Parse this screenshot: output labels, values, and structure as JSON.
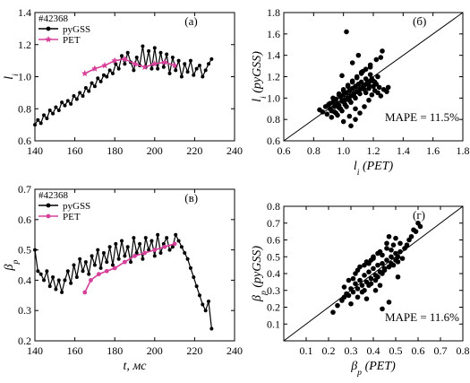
{
  "chart_data": [
    {
      "type": "line",
      "panel_label": "(а)",
      "shot": "#42368",
      "xlabel": "",
      "ylabel": "l_i",
      "xlim": [
        140,
        240
      ],
      "ylim": [
        0.6,
        1.4
      ],
      "xticks": [
        "140",
        "160",
        "180",
        "200",
        "220",
        "240"
      ],
      "yticks": [
        "0.6",
        "0.8",
        "1.0",
        "1.2",
        "1.4"
      ],
      "legend_position": "top-left",
      "colors": {
        "pyGSS": "#000000",
        "PET": "#d6409a"
      },
      "series": [
        {
          "name": "pyGSS",
          "marker": "circle",
          "x": [
            140,
            141.5,
            143,
            144.5,
            146,
            147.5,
            149,
            150.5,
            152,
            153.5,
            155,
            156.5,
            158,
            159.5,
            161,
            162.5,
            164,
            165.5,
            167,
            168.5,
            170,
            171.5,
            173,
            174.5,
            176,
            177.5,
            179,
            180.5,
            182,
            183.5,
            185,
            186.5,
            188,
            189.5,
            191,
            192.5,
            194,
            195.5,
            197,
            198.5,
            200,
            201.5,
            203,
            204.5,
            206,
            207.5,
            209,
            210.5,
            212,
            213.5,
            215,
            216.5,
            218,
            219.5,
            221,
            222.5,
            224,
            225.5,
            227,
            228.5
          ],
          "y": [
            0.7,
            0.73,
            0.71,
            0.76,
            0.74,
            0.79,
            0.77,
            0.81,
            0.79,
            0.84,
            0.82,
            0.85,
            0.83,
            0.88,
            0.86,
            0.9,
            0.88,
            0.93,
            0.91,
            0.96,
            0.94,
            0.99,
            0.97,
            1.01,
            1.0,
            1.04,
            1.02,
            1.08,
            1.05,
            1.13,
            1.08,
            1.15,
            1.09,
            1.04,
            1.12,
            1.07,
            1.19,
            1.06,
            1.16,
            1.05,
            1.18,
            1.05,
            1.15,
            1.06,
            1.14,
            1.02,
            1.12,
            1.04,
            1.1,
            1.0,
            1.08,
            1.03,
            1.1,
            1.01,
            1.05,
            1.07,
            1.0,
            1.04,
            1.08,
            1.11
          ]
        },
        {
          "name": "PET",
          "marker": "star",
          "x": [
            165,
            170,
            175,
            180,
            185,
            190,
            195,
            200,
            205,
            210
          ],
          "y": [
            1.02,
            1.05,
            1.07,
            1.1,
            1.11,
            1.08,
            1.06,
            1.08,
            1.09,
            1.07
          ]
        }
      ]
    },
    {
      "type": "scatter",
      "panel_label": "(б)",
      "xlabel": "l_i (PET)",
      "ylabel": "l_i (pyGSS)",
      "xlim": [
        0.6,
        1.8
      ],
      "ylim": [
        0.6,
        1.8
      ],
      "xticks": [
        "0.6",
        "0.8",
        "1.0",
        "1.2",
        "1.4",
        "1.6",
        "1.8"
      ],
      "yticks": [
        "0.6",
        "0.8",
        "1.0",
        "1.2",
        "1.4",
        "1.6",
        "1.8"
      ],
      "identity_line": true,
      "annotation": "MAPE = 11.5%",
      "colors": {
        "points": "#000000"
      },
      "x": [
        0.84,
        0.86,
        0.88,
        0.89,
        0.9,
        0.91,
        0.92,
        0.93,
        0.94,
        0.95,
        0.96,
        0.97,
        0.98,
        0.99,
        1.0,
        1.01,
        1.02,
        1.03,
        1.04,
        1.05,
        1.06,
        1.07,
        1.08,
        1.09,
        1.1,
        1.11,
        1.12,
        1.13,
        1.14,
        1.15,
        1.16,
        1.17,
        1.18,
        1.19,
        1.2,
        1.21,
        1.22,
        1.23,
        1.24,
        1.25,
        1.27,
        1.29,
        0.92,
        0.95,
        0.98,
        1.01,
        1.04,
        1.07,
        1.1,
        1.13,
        1.16,
        1.19,
        0.93,
        0.97,
        1.0,
        1.03,
        1.06,
        1.09,
        1.12,
        1.15,
        1.18,
        1.21,
        0.96,
        0.99,
        1.02,
        1.05,
        1.08,
        1.11,
        1.14,
        1.17,
        1.2,
        1.23,
        0.91,
        0.94,
        0.97,
        1.0,
        1.03,
        1.06,
        1.09,
        1.12,
        1.15,
        1.18,
        1.05,
        1.08,
        1.11,
        1.14,
        1.17,
        1.22,
        1.26,
        1.3,
        1.25,
        1.18,
        1.02,
        0.99,
        1.06,
        1.1,
        1.13,
        1.08,
        1.04,
        1.0,
        0.97,
        0.94
      ],
      "y": [
        0.89,
        0.87,
        0.92,
        0.85,
        0.94,
        0.9,
        0.88,
        0.96,
        0.92,
        0.99,
        0.95,
        0.93,
        1.01,
        0.97,
        1.03,
        0.98,
        1.05,
        1.0,
        1.07,
        1.02,
        1.09,
        1.04,
        1.11,
        1.06,
        1.13,
        1.08,
        1.15,
        1.1,
        1.12,
        1.05,
        1.14,
        1.09,
        1.16,
        1.03,
        1.11,
        1.07,
        1.13,
        1.05,
        1.1,
        1.02,
        1.08,
        1.06,
        0.82,
        0.86,
        0.9,
        0.94,
        0.98,
        1.02,
        1.06,
        1.1,
        1.14,
        1.18,
        1.0,
        1.04,
        1.08,
        1.12,
        1.16,
        1.2,
        1.24,
        1.18,
        1.22,
        1.15,
        0.84,
        0.88,
        0.92,
        0.96,
        1.0,
        1.04,
        1.08,
        1.12,
        1.16,
        1.2,
        0.95,
        0.99,
        1.03,
        1.07,
        1.11,
        1.15,
        1.19,
        1.23,
        1.27,
        1.31,
        0.74,
        0.8,
        0.86,
        0.92,
        0.98,
        1.36,
        1.44,
        1.1,
        1.38,
        1.29,
        1.62,
        1.21,
        1.33,
        1.4,
        1.25,
        0.9,
        0.83,
        0.78,
        0.91,
        0.87
      ]
    },
    {
      "type": "line",
      "panel_label": "(в)",
      "shot": "#42368",
      "xlabel": "t, мс",
      "ylabel": "β_p",
      "xlim": [
        140,
        240
      ],
      "ylim": [
        0.2,
        0.7
      ],
      "xticks": [
        "140",
        "160",
        "180",
        "200",
        "220",
        "240"
      ],
      "yticks": [
        "0.2",
        "0.3",
        "0.4",
        "0.5",
        "0.6",
        "0.7"
      ],
      "legend_position": "top-left",
      "colors": {
        "pyGSS": "#000000",
        "PET": "#d6409a"
      },
      "series": [
        {
          "name": "pyGSS",
          "marker": "circle",
          "x": [
            140,
            141.5,
            143,
            144.5,
            146,
            147.5,
            149,
            150.5,
            152,
            153.5,
            155,
            156.5,
            158,
            159.5,
            161,
            162.5,
            164,
            165.5,
            167,
            168.5,
            170,
            171.5,
            173,
            174.5,
            176,
            177.5,
            179,
            180.5,
            182,
            183.5,
            185,
            186.5,
            188,
            189.5,
            191,
            192.5,
            194,
            195.5,
            197,
            198.5,
            200,
            201.5,
            203,
            204.5,
            206,
            207.5,
            209,
            210.5,
            212,
            213.5,
            215,
            216.5,
            218,
            219.5,
            221,
            222.5,
            224,
            225.5,
            227,
            228.5
          ],
          "y": [
            0.5,
            0.43,
            0.42,
            0.4,
            0.43,
            0.38,
            0.41,
            0.37,
            0.4,
            0.36,
            0.4,
            0.43,
            0.39,
            0.45,
            0.41,
            0.47,
            0.43,
            0.46,
            0.42,
            0.48,
            0.45,
            0.5,
            0.44,
            0.49,
            0.46,
            0.51,
            0.45,
            0.52,
            0.47,
            0.53,
            0.48,
            0.51,
            0.46,
            0.54,
            0.49,
            0.52,
            0.47,
            0.54,
            0.5,
            0.53,
            0.48,
            0.55,
            0.49,
            0.52,
            0.54,
            0.5,
            0.51,
            0.55,
            0.53,
            0.51,
            0.49,
            0.47,
            0.44,
            0.41,
            0.38,
            0.35,
            0.32,
            0.3,
            0.33,
            0.24
          ]
        },
        {
          "name": "PET",
          "marker": "circle",
          "x": [
            165,
            168,
            172,
            176,
            180,
            185,
            190,
            195,
            200,
            205,
            210
          ],
          "y": [
            0.36,
            0.4,
            0.42,
            0.43,
            0.44,
            0.46,
            0.48,
            0.49,
            0.5,
            0.51,
            0.52
          ]
        }
      ]
    },
    {
      "type": "scatter",
      "panel_label": "(г)",
      "xlabel": "β_p (PET)",
      "ylabel": "β_p (pyGSS)",
      "xlim": [
        0,
        0.8
      ],
      "ylim": [
        0,
        0.8
      ],
      "xticks": [
        "0.1",
        "0.2",
        "0.3",
        "0.4",
        "0.5",
        "0.6",
        "0.7",
        "0.8"
      ],
      "yticks": [
        "0.1",
        "0.2",
        "0.3",
        "0.4",
        "0.5",
        "0.6",
        "0.7",
        "0.8"
      ],
      "identity_line": true,
      "annotation": "MAPE = 11.6%",
      "colors": {
        "points": "#000000"
      },
      "x": [
        0.22,
        0.24,
        0.26,
        0.27,
        0.28,
        0.29,
        0.3,
        0.31,
        0.32,
        0.33,
        0.34,
        0.35,
        0.36,
        0.37,
        0.38,
        0.39,
        0.4,
        0.41,
        0.42,
        0.43,
        0.44,
        0.45,
        0.46,
        0.47,
        0.48,
        0.49,
        0.5,
        0.51,
        0.52,
        0.53,
        0.55,
        0.57,
        0.59,
        0.61,
        0.3,
        0.33,
        0.36,
        0.39,
        0.42,
        0.45,
        0.48,
        0.51,
        0.34,
        0.37,
        0.4,
        0.43,
        0.46,
        0.49,
        0.52,
        0.35,
        0.38,
        0.41,
        0.44,
        0.47,
        0.5,
        0.32,
        0.36,
        0.4,
        0.44,
        0.48,
        0.27,
        0.31,
        0.38,
        0.42,
        0.46,
        0.5,
        0.54,
        0.56,
        0.58,
        0.6,
        0.47,
        0.44,
        0.41,
        0.37,
        0.33,
        0.29,
        0.39,
        0.43,
        0.47,
        0.51
      ],
      "y": [
        0.17,
        0.21,
        0.24,
        0.26,
        0.28,
        0.27,
        0.31,
        0.29,
        0.34,
        0.31,
        0.36,
        0.33,
        0.39,
        0.35,
        0.41,
        0.37,
        0.43,
        0.39,
        0.45,
        0.41,
        0.46,
        0.43,
        0.48,
        0.44,
        0.5,
        0.45,
        0.52,
        0.47,
        0.53,
        0.49,
        0.57,
        0.62,
        0.65,
        0.68,
        0.22,
        0.26,
        0.3,
        0.34,
        0.38,
        0.42,
        0.46,
        0.5,
        0.44,
        0.47,
        0.5,
        0.53,
        0.55,
        0.57,
        0.58,
        0.29,
        0.33,
        0.36,
        0.4,
        0.44,
        0.48,
        0.4,
        0.45,
        0.49,
        0.51,
        0.54,
        0.32,
        0.37,
        0.46,
        0.52,
        0.58,
        0.61,
        0.55,
        0.6,
        0.66,
        0.7,
        0.62,
        0.19,
        0.3,
        0.25,
        0.42,
        0.36,
        0.48,
        0.33,
        0.23,
        0.38
      ]
    }
  ]
}
